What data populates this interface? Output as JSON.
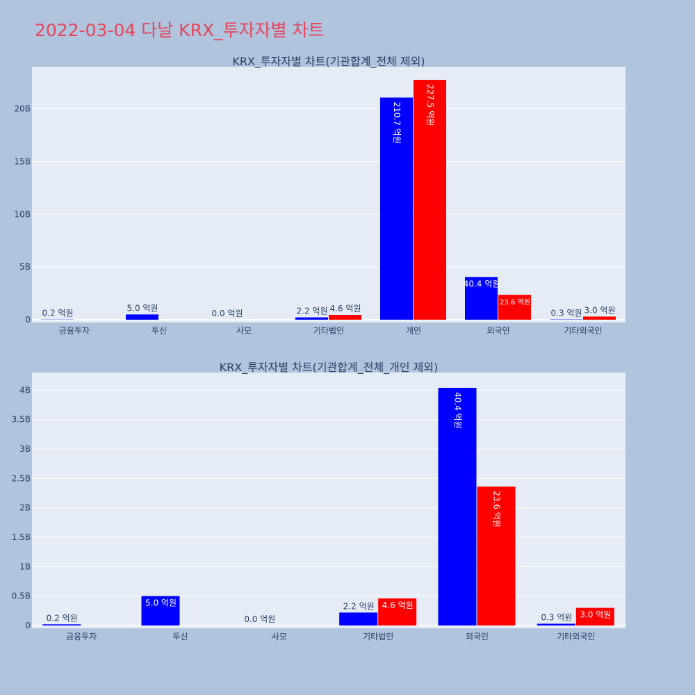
{
  "page_title": "2022-03-04 다날 KRX_투자자별 차트",
  "colors": {
    "sell": "#0000ff",
    "buy": "#ff0000",
    "plot_bg": "#e5ecf6",
    "page_bg": "#b0c4de",
    "title": "#e8445a"
  },
  "chart_data": [
    {
      "type": "bar",
      "title": "KRX_투자자별 차트(기관합계_전체 제외)",
      "categories": [
        "금융투자",
        "투신",
        "사모",
        "기타법인",
        "개인",
        "외국인",
        "기타외국인"
      ],
      "series": [
        {
          "color": "#0000ff",
          "values": [
            20000000,
            500000000,
            0,
            220000000,
            21070000000,
            4040000000,
            30000000
          ],
          "labels": [
            "0.2 억원",
            "5.0 억원",
            "0.0 억원",
            "2.2 억원",
            "210.7 억원",
            "40.4 억원",
            "0.3 억원"
          ]
        },
        {
          "color": "#ff0000",
          "values": [
            0,
            0,
            0,
            460000000,
            22750000000,
            2360000000,
            300000000
          ],
          "labels": [
            "",
            "",
            "",
            "4.6 억원",
            "227.5 억원",
            "23.6 억원",
            "3.0 억원"
          ]
        }
      ],
      "ylim": [
        0,
        24000000000
      ],
      "yticks": [
        0,
        5000000000,
        10000000000,
        15000000000,
        20000000000
      ],
      "ytick_labels": [
        "0",
        "5B",
        "10B",
        "15B",
        "20B"
      ],
      "grid": true
    },
    {
      "type": "bar",
      "title": "KRX_투자자별 차트(기관합계_전체_개인 제외)",
      "categories": [
        "금융투자",
        "투신",
        "사모",
        "기타법인",
        "외국인",
        "기타외국인"
      ],
      "series": [
        {
          "color": "#0000ff",
          "values": [
            20000000,
            500000000,
            0,
            220000000,
            4040000000,
            30000000
          ],
          "labels": [
            "0.2 억원",
            "5.0 억원",
            "0.0 억원",
            "2.2 억원",
            "40.4 억원",
            "0.3 억원"
          ]
        },
        {
          "color": "#ff0000",
          "values": [
            0,
            0,
            0,
            460000000,
            2360000000,
            300000000
          ],
          "labels": [
            "",
            "",
            "",
            "4.6 억원",
            "23.6 억원",
            "3.0 억원"
          ]
        }
      ],
      "ylim": [
        0,
        4300000000
      ],
      "yticks": [
        0,
        500000000,
        1000000000,
        1500000000,
        2000000000,
        2500000000,
        3000000000,
        3500000000,
        4000000000
      ],
      "ytick_labels": [
        "0",
        "0.5B",
        "1B",
        "1.5B",
        "2B",
        "2.5B",
        "3B",
        "3.5B",
        "4B"
      ],
      "grid": true
    }
  ]
}
